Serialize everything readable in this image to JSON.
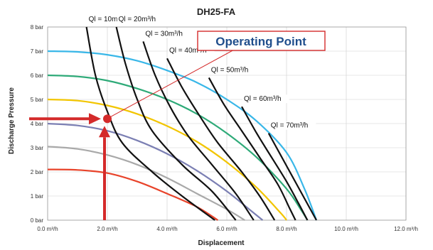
{
  "chart_data": {
    "type": "line",
    "title": "DH25-FA",
    "xlabel": "Displacement",
    "ylabel": "Discharge Pressure",
    "xlim": [
      0,
      12
    ],
    "ylim": [
      0,
      8
    ],
    "x_ticks": [
      0,
      2,
      4,
      6,
      8,
      10,
      12
    ],
    "x_tick_labels": [
      "0.0 m³/h",
      "2.0 m³/h",
      "4.0 m³/h",
      "6.0 m³/h",
      "8.0 m³/h",
      "10.0 m³/h",
      "12.0 m³/h"
    ],
    "y_ticks": [
      0,
      1,
      2,
      3,
      4,
      5,
      6,
      7,
      8
    ],
    "y_tick_labels": [
      "0 bar",
      "1 bar",
      "2 bar",
      "3 bar",
      "4 bar",
      "5 bar",
      "6 bar",
      "7 bar",
      "8 bar"
    ],
    "grid": true,
    "pump_curves": [
      {
        "color": "#e8432a",
        "points": [
          [
            0,
            2.1
          ],
          [
            1,
            2.08
          ],
          [
            2,
            1.95
          ],
          [
            3,
            1.6
          ],
          [
            4,
            1.1
          ],
          [
            5,
            0.55
          ],
          [
            5.7,
            0
          ]
        ]
      },
      {
        "color": "#a9a9a9",
        "points": [
          [
            0,
            3.05
          ],
          [
            1,
            2.95
          ],
          [
            2,
            2.7
          ],
          [
            3,
            2.3
          ],
          [
            4,
            1.75
          ],
          [
            5,
            1.1
          ],
          [
            6,
            0.45
          ],
          [
            6.6,
            0
          ]
        ]
      },
      {
        "color": "#7b7fb3",
        "points": [
          [
            0,
            4.0
          ],
          [
            1,
            3.92
          ],
          [
            2,
            3.7
          ],
          [
            3,
            3.3
          ],
          [
            4,
            2.75
          ],
          [
            5,
            2.05
          ],
          [
            6,
            1.2
          ],
          [
            6.8,
            0.4
          ],
          [
            7.2,
            0
          ]
        ]
      },
      {
        "color": "#f2c500",
        "points": [
          [
            0,
            5.0
          ],
          [
            1,
            4.95
          ],
          [
            2,
            4.75
          ],
          [
            3,
            4.4
          ],
          [
            4,
            3.9
          ],
          [
            5,
            3.25
          ],
          [
            6,
            2.4
          ],
          [
            7,
            1.35
          ],
          [
            7.8,
            0.3
          ],
          [
            8.0,
            0
          ]
        ]
      },
      {
        "color": "#2eaa78",
        "points": [
          [
            0,
            6.0
          ],
          [
            1,
            5.95
          ],
          [
            2,
            5.78
          ],
          [
            3,
            5.45
          ],
          [
            4,
            5.0
          ],
          [
            5,
            4.4
          ],
          [
            6,
            3.6
          ],
          [
            7,
            2.6
          ],
          [
            8,
            1.3
          ],
          [
            8.5,
            0.4
          ],
          [
            8.7,
            0
          ]
        ]
      },
      {
        "color": "#39b7e8",
        "points": [
          [
            0,
            7.0
          ],
          [
            1,
            6.97
          ],
          [
            2,
            6.85
          ],
          [
            3,
            6.6
          ],
          [
            4,
            6.2
          ],
          [
            5,
            5.7
          ],
          [
            6,
            5.0
          ],
          [
            7,
            4.1
          ],
          [
            8,
            2.8
          ],
          [
            8.6,
            1.3
          ],
          [
            9.0,
            0
          ]
        ]
      }
    ],
    "flow_curves": [
      {
        "label": "Ql = 10m³/h",
        "points": [
          [
            1.3,
            8.0
          ],
          [
            1.6,
            6.0
          ],
          [
            2.0,
            4.5
          ],
          [
            2.5,
            3.2
          ],
          [
            3.5,
            2.0
          ],
          [
            4.5,
            1.0
          ],
          [
            5.6,
            0
          ]
        ]
      },
      {
        "label": "Ql = 20m³/h",
        "points": [
          [
            2.3,
            8.0
          ],
          [
            2.6,
            6.5
          ],
          [
            3.0,
            5.0
          ],
          [
            3.5,
            3.7
          ],
          [
            4.5,
            2.3
          ],
          [
            5.5,
            1.2
          ],
          [
            6.3,
            0
          ]
        ]
      },
      {
        "label": "Ql = 30m³/h",
        "points": [
          [
            3.2,
            7.4
          ],
          [
            3.6,
            6.0
          ],
          [
            4.1,
            4.7
          ],
          [
            4.7,
            3.5
          ],
          [
            5.5,
            2.3
          ],
          [
            6.3,
            1.1
          ],
          [
            6.9,
            0
          ]
        ]
      },
      {
        "label": "Ql = 40m³/h",
        "points": [
          [
            4.0,
            6.7
          ],
          [
            4.5,
            5.5
          ],
          [
            5.1,
            4.3
          ],
          [
            5.7,
            3.2
          ],
          [
            6.5,
            2.0
          ],
          [
            7.1,
            1.0
          ],
          [
            7.6,
            0
          ]
        ]
      },
      {
        "label": "Ql = 50m³/h",
        "points": [
          [
            5.4,
            5.9
          ],
          [
            5.9,
            4.8
          ],
          [
            6.5,
            3.7
          ],
          [
            7.1,
            2.6
          ],
          [
            7.7,
            1.5
          ],
          [
            8.1,
            0.5
          ],
          [
            8.3,
            0
          ]
        ]
      },
      {
        "label": "Ql = 60m³/h",
        "points": [
          [
            6.5,
            4.7
          ],
          [
            7.0,
            3.6
          ],
          [
            7.5,
            2.6
          ],
          [
            8.0,
            1.6
          ],
          [
            8.4,
            0.7
          ],
          [
            8.7,
            0
          ]
        ]
      },
      {
        "label": "Ql = 70m³/h",
        "points": [
          [
            7.4,
            3.6
          ],
          [
            7.8,
            2.7
          ],
          [
            8.2,
            1.8
          ],
          [
            8.6,
            0.9
          ],
          [
            9.0,
            0
          ]
        ]
      }
    ],
    "operating_point": {
      "label": "Operating Point",
      "x": 2.0,
      "y": 4.2,
      "marker_color": "#d42a2a"
    }
  }
}
